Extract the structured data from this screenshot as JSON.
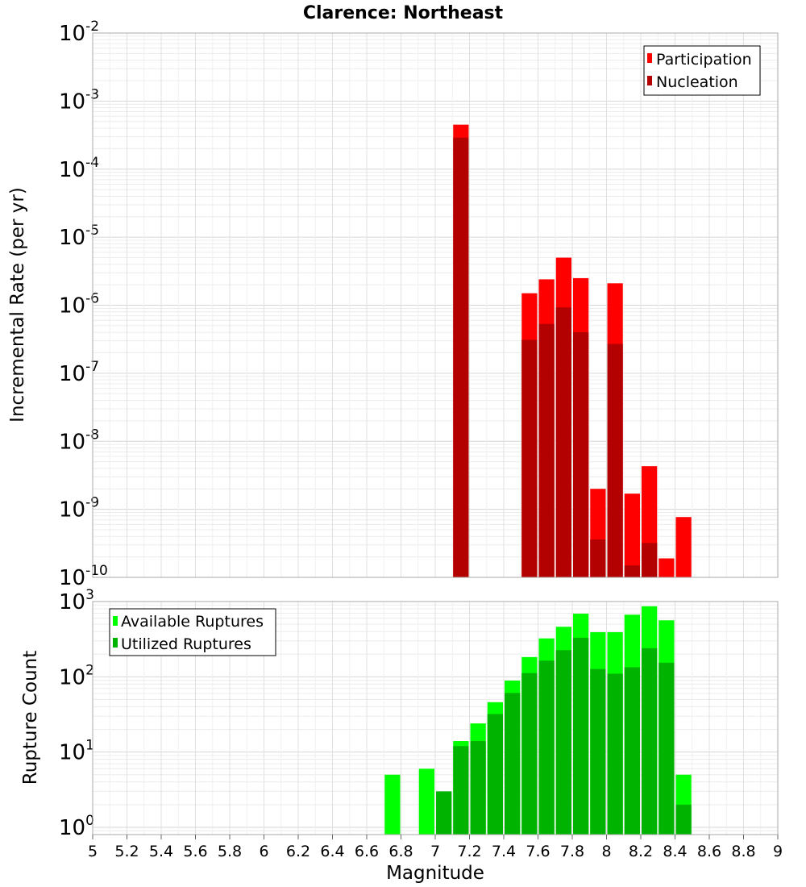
{
  "chart_data": [
    {
      "type": "bar",
      "title": "Clarence: Northeast",
      "ylabel": "Incremental Rate (per yr)",
      "xlabel": "",
      "yscale": "log",
      "ylim": [
        1e-10,
        0.01
      ],
      "xlim": [
        5,
        9
      ],
      "ytick_base": "10",
      "ytick_exponents": [
        "-10",
        "-9",
        "-8",
        "-7",
        "-6",
        "-5",
        "-4",
        "-3",
        "-2"
      ],
      "grid": true,
      "legend_position": "top-right",
      "bin_width": 0.1,
      "series": [
        {
          "name": "Participation",
          "color": "#ff0000",
          "x": [
            7.15,
            7.55,
            7.65,
            7.75,
            7.85,
            7.95,
            8.05,
            8.15,
            8.25,
            8.35,
            8.45
          ],
          "values": [
            0.00045,
            1.5e-06,
            2.4e-06,
            5e-06,
            2.5e-06,
            2e-09,
            2.1e-06,
            1.7e-09,
            4.3e-09,
            1.9e-10,
            7.7e-10
          ]
        },
        {
          "name": "Nucleation",
          "color": "#b30000",
          "x": [
            7.15,
            7.55,
            7.65,
            7.75,
            7.85,
            7.95,
            8.05,
            8.15,
            8.25
          ],
          "values": [
            0.00029,
            3.1e-07,
            5.3e-07,
            9.3e-07,
            4e-07,
            3.6e-10,
            2.7e-07,
            1.5e-10,
            3.2e-10
          ]
        }
      ]
    },
    {
      "type": "bar",
      "title": "",
      "ylabel": "Rupture Count",
      "xlabel": "Magnitude",
      "yscale": "log",
      "ylim": [
        0.8,
        1000
      ],
      "xlim": [
        5,
        9
      ],
      "ytick_base": "10",
      "ytick_exponents": [
        "0",
        "1",
        "2",
        "3"
      ],
      "xticks": [
        "5",
        "5.2",
        "5.4",
        "5.6",
        "5.8",
        "6",
        "6.2",
        "6.4",
        "6.6",
        "6.8",
        "7",
        "7.2",
        "7.4",
        "7.6",
        "7.8",
        "8",
        "8.2",
        "8.4",
        "8.6",
        "8.8",
        "9"
      ],
      "grid": true,
      "legend_position": "top-left",
      "bin_width": 0.1,
      "series": [
        {
          "name": "Available Ruptures",
          "color": "#00ff00",
          "x": [
            6.75,
            6.95,
            7.05,
            7.15,
            7.25,
            7.35,
            7.45,
            7.55,
            7.65,
            7.75,
            7.85,
            7.95,
            8.05,
            8.15,
            8.25,
            8.35,
            8.45
          ],
          "values": [
            5,
            6,
            3,
            14,
            24,
            46,
            89,
            183,
            324,
            462,
            690,
            392,
            392,
            669,
            866,
            563,
            5
          ]
        },
        {
          "name": "Utilized Ruptures",
          "color": "#00b300",
          "x": [
            7.05,
            7.15,
            7.25,
            7.35,
            7.45,
            7.55,
            7.65,
            7.75,
            7.85,
            7.95,
            8.05,
            8.15,
            8.25,
            8.35,
            8.45
          ],
          "values": [
            3,
            12,
            14,
            32,
            61,
            112,
            164,
            226,
            330,
            127,
            110,
            134,
            240,
            154,
            2
          ]
        }
      ]
    }
  ]
}
